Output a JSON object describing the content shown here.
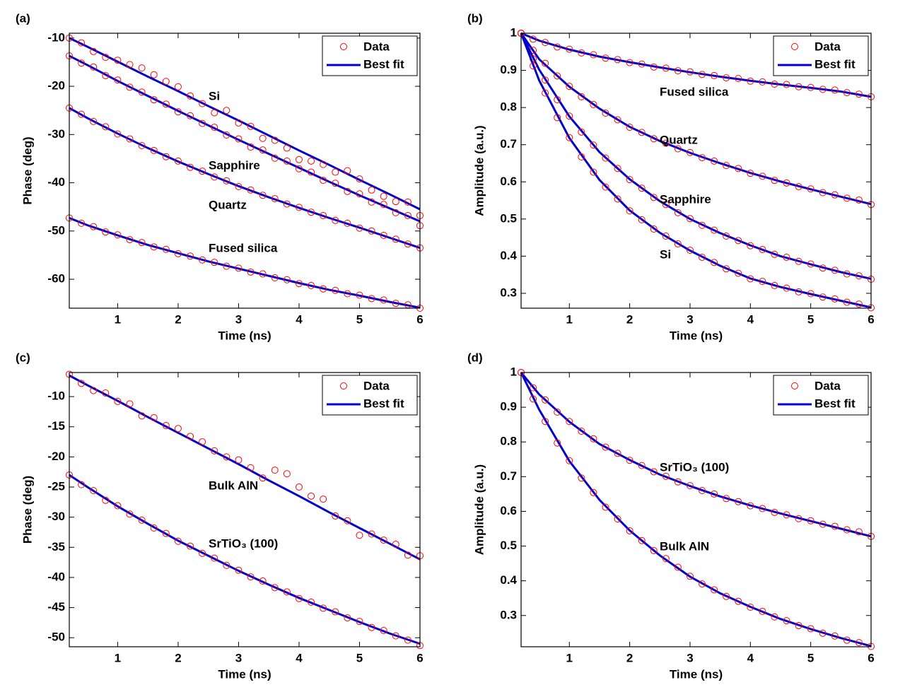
{
  "chart_data": [
    {
      "type": "line",
      "panel_label": "(a)",
      "xlabel": "Time (ns)",
      "ylabel": "Phase (deg)",
      "xlim": [
        0.2,
        6
      ],
      "xticks": [
        1,
        2,
        3,
        4,
        5,
        6
      ],
      "ylim": [
        -66,
        -9
      ],
      "yticks": [
        -60,
        -50,
        -40,
        -30,
        -20,
        -10
      ],
      "legend": [
        "Data",
        "Best fit"
      ],
      "legend_loc": "upper right",
      "data_color": "#ff0000",
      "fit_color": "#0000cc",
      "x": [
        0.2,
        0.4,
        0.6,
        0.8,
        1,
        1.2,
        1.4,
        1.6,
        1.8,
        2,
        2.2,
        2.4,
        2.6,
        2.8,
        3,
        3.2,
        3.4,
        3.6,
        3.8,
        4,
        4.2,
        4.4,
        4.6,
        4.8,
        5,
        5.2,
        5.4,
        5.6,
        5.8,
        6
      ],
      "fit_x": [
        0.2,
        0.5,
        1,
        1.5,
        2,
        2.5,
        3,
        3.5,
        4,
        4.5,
        5,
        5.5,
        6
      ],
      "series": [
        {
          "name": "Si",
          "values": [
            -10,
            -11.0,
            -12.8,
            -14.0,
            -14.6,
            -15.5,
            -16.2,
            -17.6,
            -19.0,
            -20.1,
            -22.0,
            -23.6,
            -25.5,
            -25.0,
            -27.6,
            -28.3,
            -30.8,
            -31.2,
            -32.8,
            -35.2,
            -35.5,
            -36.2,
            -37.8,
            -37.5,
            -39.2,
            -41.5,
            -42.8,
            -43.9,
            -44.0,
            -46.8
          ],
          "fit": [
            -10,
            -11.8,
            -14.9,
            -18.0,
            -21.0,
            -24.1,
            -27.1,
            -30.2,
            -33.3,
            -36.3,
            -39.4,
            -42.4,
            -45.5
          ]
        },
        {
          "name": "Sapphire",
          "values": [
            -13.7,
            -15.2,
            -16.0,
            -17.8,
            -18.7,
            -20.2,
            -21.2,
            -22.8,
            -23.7,
            -25.3,
            -26.1,
            -27.7,
            -28.5,
            -30.1,
            -30.9,
            -32.6,
            -33.2,
            -34.9,
            -35.5,
            -37.1,
            -37.8,
            -39.5,
            -40.1,
            -41.8,
            -42.3,
            -44.0,
            -44.5,
            -46.2,
            -46.8,
            -48.9
          ],
          "fit": [
            -13.7,
            -15.6,
            -18.9,
            -22.0,
            -25.1,
            -28.1,
            -31.1,
            -34.0,
            -36.9,
            -39.8,
            -42.6,
            -45.3,
            -48.0
          ]
        },
        {
          "name": "Quartz",
          "values": [
            -24.5,
            -25.8,
            -27.3,
            -28.4,
            -29.9,
            -30.9,
            -32.3,
            -33.3,
            -34.6,
            -35.5,
            -36.8,
            -37.6,
            -38.8,
            -39.6,
            -40.8,
            -41.5,
            -42.6,
            -43.3,
            -44.4,
            -45.1,
            -46.1,
            -46.8,
            -47.8,
            -48.4,
            -49.4,
            -50.0,
            -50.9,
            -51.7,
            -52.7,
            -53.5
          ],
          "fit": [
            -24.5,
            -26.6,
            -29.8,
            -32.8,
            -35.6,
            -38.2,
            -40.7,
            -43.0,
            -45.2,
            -47.3,
            -49.3,
            -51.4,
            -53.5
          ]
        },
        {
          "name": "Fused silica",
          "values": [
            -47.3,
            -48.4,
            -49.1,
            -50.2,
            -50.8,
            -51.8,
            -52.4,
            -53.3,
            -53.8,
            -54.7,
            -55.2,
            -56.0,
            -56.5,
            -57.3,
            -57.7,
            -58.5,
            -58.9,
            -59.7,
            -60.1,
            -60.9,
            -61.3,
            -62.0,
            -62.3,
            -63.0,
            -63.3,
            -64.0,
            -64.3,
            -65.0,
            -65.3,
            -66.0
          ],
          "fit": [
            -47.3,
            -48.8,
            -50.9,
            -52.9,
            -54.6,
            -56.3,
            -57.8,
            -59.3,
            -60.8,
            -62.2,
            -63.4,
            -64.7,
            -65.9
          ]
        }
      ]
    },
    {
      "type": "line",
      "panel_label": "(b)",
      "xlabel": "Time (ns)",
      "ylabel": "Amplitude (a.u.)",
      "xlim": [
        0.2,
        6
      ],
      "xticks": [
        1,
        2,
        3,
        4,
        5,
        6
      ],
      "ylim": [
        0.26,
        1.0
      ],
      "yticks": [
        0.3,
        0.4,
        0.5,
        0.6,
        0.7,
        0.8,
        0.9,
        1
      ],
      "legend": [
        "Data",
        "Best fit"
      ],
      "legend_loc": "upper right",
      "data_color": "#ff0000",
      "fit_color": "#0000cc",
      "x": [
        0.2,
        0.4,
        0.6,
        0.8,
        1,
        1.2,
        1.4,
        1.6,
        1.8,
        2,
        2.2,
        2.4,
        2.6,
        2.8,
        3,
        3.2,
        3.4,
        3.6,
        3.8,
        4,
        4.2,
        4.4,
        4.6,
        4.8,
        5,
        5.2,
        5.4,
        5.6,
        5.8,
        6
      ],
      "fit_x": [
        0.2,
        0.5,
        1,
        1.5,
        2,
        2.5,
        3,
        3.5,
        4,
        4.5,
        5,
        5.5,
        6
      ],
      "series": [
        {
          "name": "Fused silica",
          "values": [
            1,
            0.984,
            0.975,
            0.963,
            0.957,
            0.947,
            0.942,
            0.933,
            0.929,
            0.921,
            0.917,
            0.909,
            0.906,
            0.899,
            0.896,
            0.889,
            0.886,
            0.88,
            0.878,
            0.871,
            0.869,
            0.863,
            0.862,
            0.856,
            0.854,
            0.849,
            0.847,
            0.84,
            0.836,
            0.829
          ],
          "fit": [
            1,
            0.98,
            0.956,
            0.937,
            0.922,
            0.908,
            0.895,
            0.883,
            0.872,
            0.862,
            0.853,
            0.843,
            0.829
          ]
        },
        {
          "name": "Quartz",
          "values": [
            1,
            0.954,
            0.919,
            0.885,
            0.857,
            0.829,
            0.808,
            0.785,
            0.767,
            0.747,
            0.733,
            0.716,
            0.704,
            0.689,
            0.679,
            0.665,
            0.656,
            0.644,
            0.636,
            0.623,
            0.615,
            0.604,
            0.597,
            0.587,
            0.581,
            0.571,
            0.565,
            0.556,
            0.551,
            0.539
          ],
          "fit": [
            1,
            0.93,
            0.856,
            0.797,
            0.748,
            0.71,
            0.678,
            0.65,
            0.624,
            0.601,
            0.58,
            0.56,
            0.54
          ]
        },
        {
          "name": "Sapphire",
          "values": [
            1,
            0.931,
            0.874,
            0.821,
            0.777,
            0.734,
            0.699,
            0.664,
            0.636,
            0.606,
            0.583,
            0.558,
            0.539,
            0.517,
            0.501,
            0.483,
            0.47,
            0.454,
            0.442,
            0.428,
            0.418,
            0.405,
            0.397,
            0.386,
            0.379,
            0.368,
            0.362,
            0.352,
            0.347,
            0.338
          ],
          "fit": [
            1,
            0.902,
            0.776,
            0.68,
            0.607,
            0.548,
            0.5,
            0.462,
            0.429,
            0.4,
            0.378,
            0.357,
            0.339
          ]
        },
        {
          "name": "Si",
          "values": [
            1,
            0.912,
            0.839,
            0.773,
            0.719,
            0.667,
            0.626,
            0.586,
            0.554,
            0.522,
            0.498,
            0.473,
            0.454,
            0.433,
            0.416,
            0.397,
            0.383,
            0.366,
            0.354,
            0.339,
            0.332,
            0.321,
            0.314,
            0.304,
            0.299,
            0.29,
            0.285,
            0.276,
            0.271,
            0.261
          ],
          "fit": [
            1,
            0.873,
            0.718,
            0.605,
            0.523,
            0.463,
            0.415,
            0.374,
            0.34,
            0.317,
            0.298,
            0.28,
            0.262
          ]
        }
      ]
    },
    {
      "type": "line",
      "panel_label": "(c)",
      "xlabel": "Time (ns)",
      "ylabel": "Phase (deg)",
      "xlim": [
        0.2,
        6
      ],
      "xticks": [
        1,
        2,
        3,
        4,
        5,
        6
      ],
      "ylim": [
        -51.5,
        -6
      ],
      "yticks": [
        -50,
        -45,
        -40,
        -35,
        -30,
        -25,
        -20,
        -15,
        -10
      ],
      "legend": [
        "Data",
        "Best fit"
      ],
      "legend_loc": "upper right",
      "data_color": "#ff0000",
      "fit_color": "#0000cc",
      "x": [
        0.2,
        0.4,
        0.6,
        0.8,
        1,
        1.2,
        1.4,
        1.6,
        1.8,
        2,
        2.2,
        2.4,
        2.6,
        2.8,
        3,
        3.2,
        3.4,
        3.6,
        3.8,
        4,
        4.2,
        4.4,
        4.6,
        4.8,
        5,
        5.2,
        5.4,
        5.6,
        5.8,
        6
      ],
      "fit_x": [
        0.2,
        0.5,
        1,
        1.5,
        2,
        2.5,
        3,
        3.5,
        4,
        4.5,
        5,
        5.5,
        6
      ],
      "series": [
        {
          "name": "Bulk AlN",
          "values": [
            -6.3,
            -7.8,
            -9.0,
            -9.4,
            -10.8,
            -11.2,
            -13.2,
            -13.5,
            -14.8,
            -15.3,
            -16.6,
            -17.5,
            -19.0,
            -20.0,
            -20.5,
            -21.8,
            -23.5,
            -22.2,
            -22.8,
            -25.0,
            -26.5,
            -27.0,
            -29.8,
            -30.6,
            -33.0,
            -32.8,
            -33.8,
            -34.5,
            -36.3,
            -36.4
          ],
          "fit": [
            -6.5,
            -8.1,
            -10.7,
            -13.4,
            -16.0,
            -18.6,
            -21.2,
            -23.9,
            -26.5,
            -29.2,
            -31.8,
            -34.4,
            -37.0
          ]
        },
        {
          "name": "SrTiO₃ (100)",
          "values": [
            -23.0,
            -24.6,
            -25.6,
            -27.2,
            -28.1,
            -29.5,
            -30.5,
            -31.8,
            -32.7,
            -34.0,
            -34.8,
            -36.0,
            -36.8,
            -38.0,
            -38.8,
            -39.9,
            -40.6,
            -41.7,
            -42.4,
            -43.5,
            -44.1,
            -45.1,
            -45.7,
            -46.7,
            -47.3,
            -48.3,
            -48.8,
            -49.7,
            -50.4,
            -51.3
          ],
          "fit": [
            -23.0,
            -25.0,
            -28.2,
            -31.1,
            -33.9,
            -36.4,
            -38.9,
            -41.2,
            -43.4,
            -45.4,
            -47.4,
            -49.3,
            -51.0
          ]
        }
      ]
    },
    {
      "type": "line",
      "panel_label": "(d)",
      "xlabel": "Time (ns)",
      "ylabel": "Amplitude (a.u.)",
      "xlim": [
        0.2,
        6
      ],
      "xticks": [
        1,
        2,
        3,
        4,
        5,
        6
      ],
      "ylim": [
        0.21,
        1.0
      ],
      "yticks": [
        0.3,
        0.4,
        0.5,
        0.6,
        0.7,
        0.8,
        0.9,
        1
      ],
      "legend": [
        "Data",
        "Best fit"
      ],
      "legend_loc": "upper right",
      "data_color": "#ff0000",
      "fit_color": "#0000cc",
      "x": [
        0.2,
        0.4,
        0.6,
        0.8,
        1,
        1.2,
        1.4,
        1.6,
        1.8,
        2,
        2.2,
        2.4,
        2.6,
        2.8,
        3,
        3.2,
        3.4,
        3.6,
        3.8,
        4,
        4.2,
        4.4,
        4.6,
        4.8,
        5,
        5.2,
        5.4,
        5.6,
        5.8,
        6
      ],
      "fit_x": [
        0.2,
        0.5,
        1,
        1.5,
        2,
        2.5,
        3,
        3.5,
        4,
        4.5,
        5,
        5.5,
        6
      ],
      "series": [
        {
          "name": "SrTiO₃ (100)",
          "values": [
            1,
            0.956,
            0.921,
            0.886,
            0.859,
            0.831,
            0.809,
            0.785,
            0.767,
            0.747,
            0.732,
            0.714,
            0.701,
            0.685,
            0.674,
            0.66,
            0.65,
            0.637,
            0.628,
            0.616,
            0.608,
            0.597,
            0.59,
            0.579,
            0.573,
            0.563,
            0.557,
            0.547,
            0.541,
            0.528
          ],
          "fit": [
            1,
            0.937,
            0.858,
            0.794,
            0.748,
            0.706,
            0.673,
            0.643,
            0.617,
            0.594,
            0.572,
            0.55,
            0.528
          ]
        },
        {
          "name": "Bulk AlN",
          "values": [
            1,
            0.924,
            0.859,
            0.797,
            0.746,
            0.696,
            0.654,
            0.612,
            0.578,
            0.544,
            0.516,
            0.487,
            0.464,
            0.439,
            0.413,
            0.391,
            0.374,
            0.355,
            0.341,
            0.324,
            0.312,
            0.296,
            0.285,
            0.271,
            0.262,
            0.249,
            0.241,
            0.229,
            0.222,
            0.211
          ],
          "fit": [
            1,
            0.893,
            0.745,
            0.633,
            0.545,
            0.473,
            0.412,
            0.364,
            0.325,
            0.29,
            0.261,
            0.235,
            0.212
          ]
        }
      ]
    }
  ]
}
